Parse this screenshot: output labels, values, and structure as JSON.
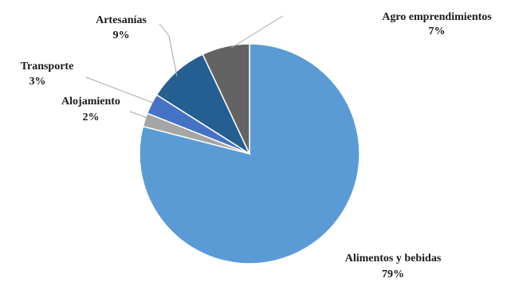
{
  "chart_data": {
    "type": "pie",
    "title": "",
    "slices": [
      {
        "name": "Alimentos y bebidas",
        "value": 79,
        "label": "79%",
        "color": "#5b9bd5"
      },
      {
        "name": "Alojamiento",
        "value": 2,
        "label": "2%",
        "color": "#a5a5a5"
      },
      {
        "name": "Transporte",
        "value": 3,
        "label": "3%",
        "color": "#4472c4"
      },
      {
        "name": "Artesanías",
        "value": 9,
        "label": "9%",
        "color": "#255e91"
      },
      {
        "name": "Agro emprendimientos",
        "value": 7,
        "label": "7%",
        "color": "#636363"
      }
    ],
    "legend": "none",
    "data_labels": "outside with leader lines"
  }
}
